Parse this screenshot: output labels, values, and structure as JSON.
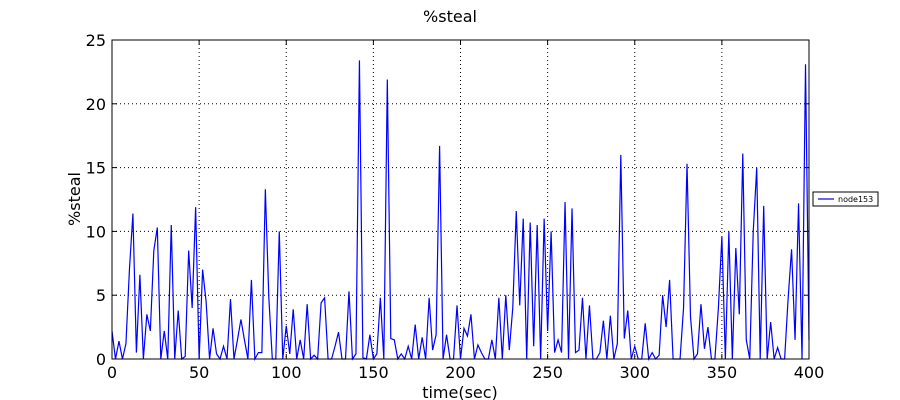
{
  "chart_data": {
    "type": "line",
    "title": "%steal",
    "x_label": "time(sec)",
    "y_label": "%steal",
    "x": [
      0,
      2,
      4,
      6,
      8,
      10,
      12,
      14,
      16,
      18,
      20,
      22,
      24,
      26,
      28,
      30,
      32,
      34,
      36,
      38,
      40,
      42,
      44,
      46,
      48,
      50,
      52,
      54,
      56,
      58,
      60,
      62,
      64,
      66,
      68,
      70,
      72,
      74,
      76,
      78,
      80,
      82,
      84,
      86,
      88,
      90,
      92,
      94,
      96,
      98,
      100,
      102,
      104,
      106,
      108,
      110,
      112,
      114,
      116,
      118,
      120,
      122,
      124,
      126,
      128,
      130,
      132,
      134,
      136,
      138,
      140,
      142,
      144,
      146,
      148,
      150,
      152,
      154,
      156,
      158,
      160,
      162,
      164,
      166,
      168,
      170,
      172,
      174,
      176,
      178,
      180,
      182,
      184,
      186,
      188,
      190,
      192,
      194,
      196,
      198,
      200,
      202,
      204,
      206,
      208,
      210,
      212,
      214,
      216,
      218,
      220,
      222,
      224,
      226,
      228,
      230,
      232,
      234,
      236,
      238,
      240,
      242,
      244,
      246,
      248,
      250,
      252,
      254,
      256,
      258,
      260,
      262,
      264,
      266,
      268,
      270,
      272,
      274,
      276,
      278,
      280,
      282,
      284,
      286,
      288,
      290,
      292,
      294,
      296,
      298,
      300,
      302,
      304,
      306,
      308,
      310,
      312,
      314,
      316,
      318,
      320,
      322,
      324,
      326,
      328,
      330,
      332,
      334,
      336,
      338,
      340,
      342,
      344,
      346,
      348,
      350,
      352,
      354,
      356,
      358,
      360,
      362,
      364,
      366,
      368,
      370,
      372,
      374,
      376,
      378,
      380,
      382,
      384,
      386,
      388,
      390,
      392,
      394,
      396,
      398,
      400
    ],
    "series": [
      {
        "name": "node153",
        "color": "#0000ff",
        "values": [
          2.2,
          0,
          1.4,
          0,
          1.2,
          7,
          11.4,
          0.5,
          6.6,
          0,
          3.5,
          2.2,
          8.5,
          10.3,
          0,
          2.2,
          0,
          10.5,
          0,
          3.8,
          0,
          0.2,
          8.5,
          4,
          11.9,
          0,
          7,
          4.5,
          0,
          2.4,
          0.4,
          0,
          1,
          0,
          4.7,
          0,
          1.5,
          3.1,
          1.5,
          0,
          6.2,
          0,
          0.5,
          0.5,
          13.3,
          4.8,
          0,
          0,
          10,
          0,
          2.6,
          0.4,
          3.9,
          0,
          1.5,
          0,
          4.3,
          0,
          0.3,
          0,
          4.4,
          4.8,
          0,
          0,
          1,
          2.1,
          0,
          0,
          5.3,
          0,
          0.4,
          23.4,
          0.1,
          0,
          1.9,
          0,
          0.4,
          4.8,
          0,
          21.9,
          1.6,
          1.5,
          0,
          0.4,
          0,
          1,
          0,
          2.7,
          0,
          1.7,
          0,
          4.8,
          0.7,
          1.9,
          16.7,
          0,
          1.9,
          0,
          0,
          4.2,
          0,
          2.4,
          1.8,
          3.5,
          0,
          1.1,
          0.5,
          0,
          0,
          1.5,
          0,
          4.8,
          0,
          5,
          0.7,
          4,
          11.6,
          4.2,
          11,
          0,
          10.7,
          1,
          10.5,
          0,
          11,
          2.2,
          10,
          0.5,
          1.5,
          0.5,
          12.3,
          0,
          11.8,
          0.5,
          0.7,
          4.8,
          0,
          4.2,
          0,
          0,
          0.5,
          3,
          0,
          3.4,
          0,
          1.2,
          16,
          1.6,
          3.8,
          0,
          1,
          0,
          0,
          2.8,
          0,
          0.5,
          0,
          0.3,
          5,
          2.5,
          6.2,
          0,
          0,
          0,
          4,
          15.3,
          3.3,
          0,
          0.4,
          4.3,
          0.8,
          2.5,
          0,
          0,
          4,
          9.6,
          0,
          10,
          0,
          8.7,
          3.5,
          16.1,
          1.5,
          0,
          10,
          15,
          0,
          12,
          0,
          2.9,
          0,
          0.9,
          0,
          0,
          4.7,
          8.6,
          1.5,
          12.2,
          0,
          23.1,
          1.5
        ]
      }
    ],
    "xlim": [
      0,
      400
    ],
    "xticks": [
      0,
      50,
      100,
      150,
      200,
      250,
      300,
      350,
      400
    ],
    "ylim": [
      0,
      25
    ],
    "yticks": [
      0,
      5,
      10,
      15,
      20,
      25
    ],
    "grid": true,
    "legend": "right"
  }
}
